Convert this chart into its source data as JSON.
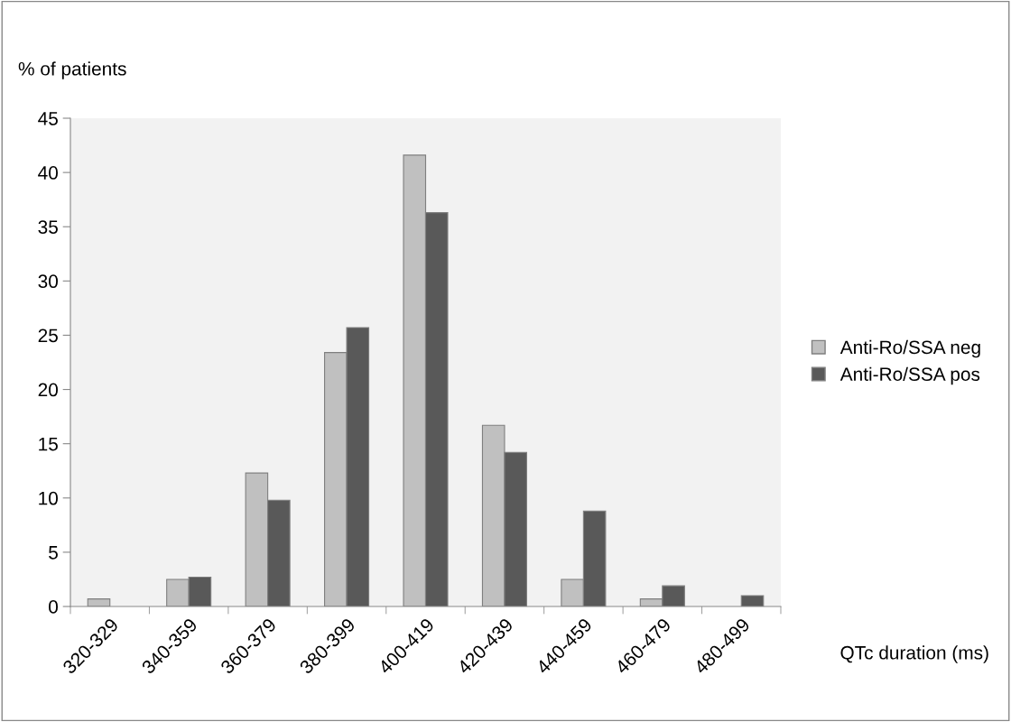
{
  "chart_data": {
    "type": "bar",
    "ylabel": "% of patients",
    "xlabel": "QTc duration (ms)",
    "categories": [
      "320-329",
      "340-359",
      "360-379",
      "380-399",
      "400-419",
      "420-439",
      "440-459",
      "460-479",
      "480-499"
    ],
    "series": [
      {
        "name": "Anti-Ro/SSA neg",
        "color": "#c0c0c0",
        "values": [
          0.7,
          2.5,
          12.3,
          23.4,
          41.6,
          16.7,
          2.5,
          0.7,
          null
        ]
      },
      {
        "name": "Anti-Ro/SSA pos",
        "color": "#595959",
        "values": [
          null,
          2.7,
          9.8,
          25.7,
          36.3,
          14.2,
          8.8,
          1.9,
          1.0
        ]
      }
    ],
    "ylim": [
      0,
      45
    ],
    "yticks": [
      0,
      5,
      10,
      15,
      20,
      25,
      30,
      35,
      40,
      45
    ],
    "grid": false,
    "legend": "right"
  }
}
